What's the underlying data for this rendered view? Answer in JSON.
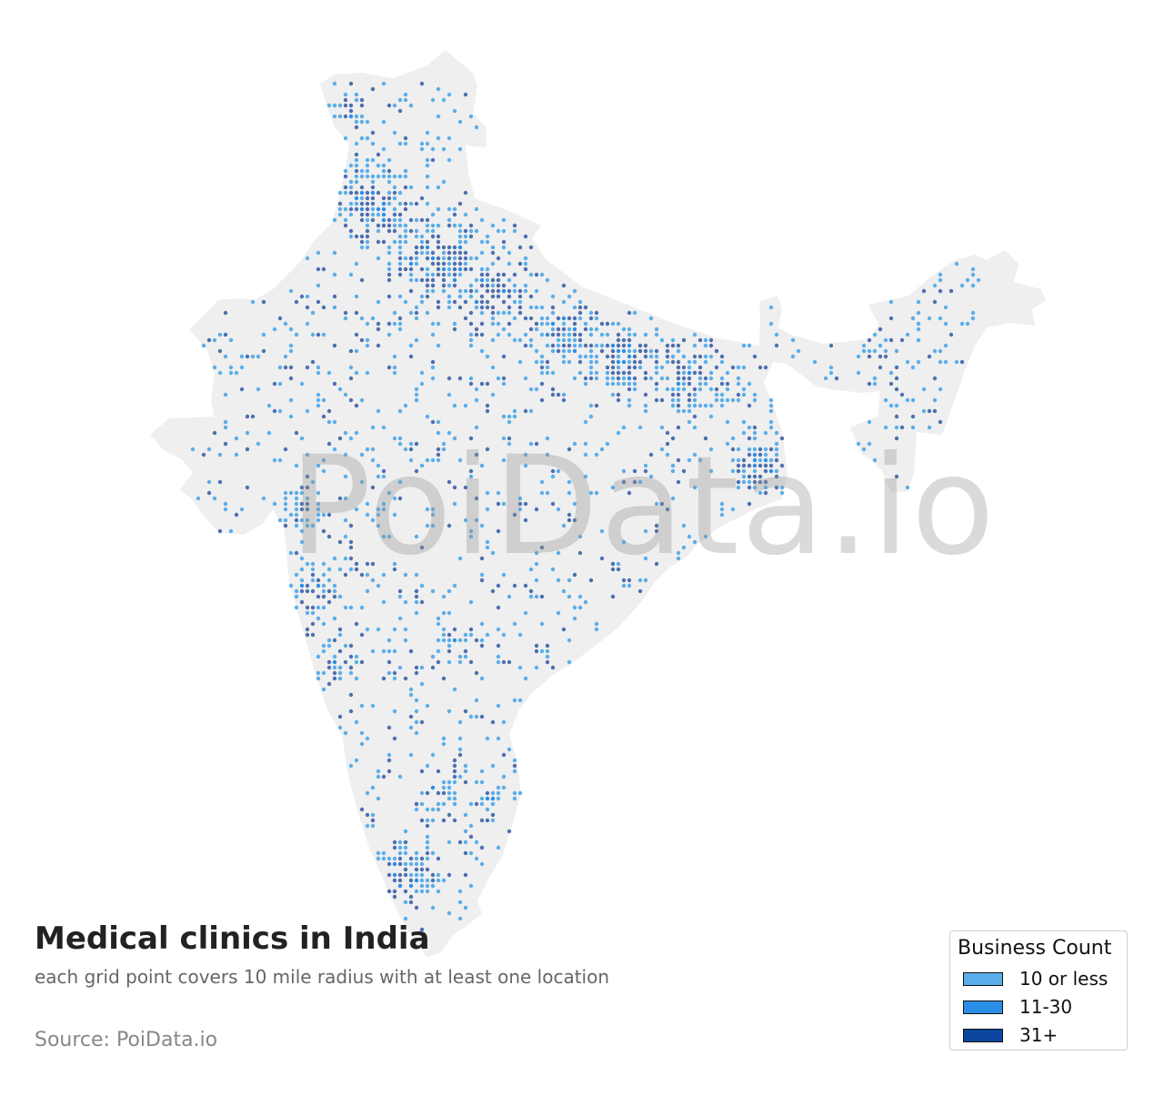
{
  "title": "Medical clinics in India",
  "subtitle": "each grid point covers 10 mile radius with at least one location",
  "source": "Source: PoiData.io",
  "watermark": "PoiData.io",
  "legend": {
    "title": "Business Count",
    "items": [
      {
        "label": "10 or less",
        "color": "#5aaeea"
      },
      {
        "label": "11-30",
        "color": "#2b8ee6"
      },
      {
        "label": "31+",
        "color": "#0c46a0"
      }
    ]
  },
  "colors": {
    "land": "#efefef",
    "dot_low": "#5aaeea",
    "dot_mid": "#2b8ee6",
    "dot_high": "#4e6fb0"
  }
}
